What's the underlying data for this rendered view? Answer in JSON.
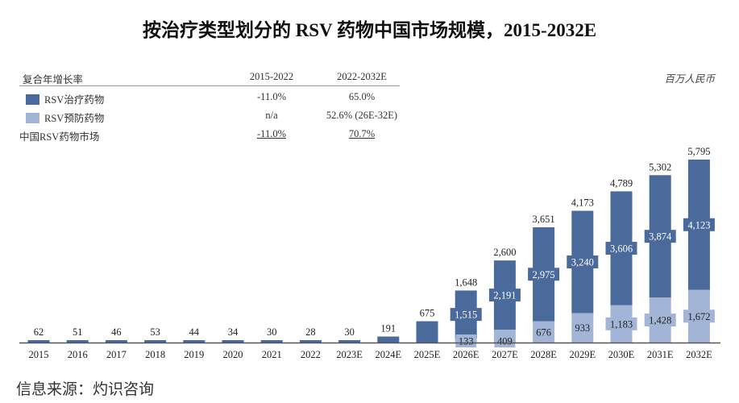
{
  "title": "按治疗类型划分的 RSV 药物中国市场规模，2015-2032E",
  "unit": "百万人民币",
  "source": "信息来源：灼识咨询",
  "cagr_table": {
    "header": [
      "复合年增长率",
      "2015-2022",
      "2022-2032E"
    ],
    "rows": [
      {
        "label": "RSV治疗药物",
        "p1": "-11.0%",
        "p2": "65.0%",
        "color": "#4a6a9c"
      },
      {
        "label": "RSV预防药物",
        "p1": "n/a",
        "p2": "52.6% (26E-32E)",
        "color": "#a3b5d6"
      },
      {
        "label": "中国RSV药物市场",
        "p1": "-11.0%",
        "p2": "70.7%"
      }
    ]
  },
  "chart_data": {
    "type": "bar",
    "stacked": true,
    "title": "按治疗类型划分的 RSV 药物中国市场规模，2015-2032E",
    "xlabel": "",
    "ylabel": "百万人民币",
    "ylim": [
      0,
      5795
    ],
    "grid": false,
    "categories": [
      "2015",
      "2016",
      "2017",
      "2018",
      "2019",
      "2020",
      "2021",
      "2022",
      "2023E",
      "2024E",
      "2025E",
      "2026E",
      "2027E",
      "2028E",
      "2029E",
      "2030E",
      "2031E",
      "2032E"
    ],
    "series": [
      {
        "name": "RSV预防药物",
        "color": "#a3b5d6",
        "values": [
          0,
          0,
          0,
          0,
          0,
          0,
          0,
          0,
          0,
          0,
          0,
          133,
          409,
          676,
          933,
          1183,
          1428,
          1672
        ],
        "labels": [
          "",
          "",
          "",
          "",
          "",
          "",
          "",
          "",
          "",
          "",
          "",
          "133",
          "409",
          "676",
          "933",
          "1,183",
          "1,428",
          "1,672"
        ]
      },
      {
        "name": "RSV治疗药物",
        "color": "#4a6a9c",
        "values": [
          62,
          51,
          46,
          53,
          44,
          34,
          30,
          28,
          30,
          191,
          675,
          1515,
          2191,
          2975,
          3240,
          3606,
          3874,
          4123
        ],
        "labels": [
          "",
          "",
          "",
          "",
          "",
          "",
          "",
          "",
          "",
          "",
          "",
          "1,515",
          "2,191",
          "2,975",
          "3,240",
          "3,606",
          "3,874",
          "4,123"
        ]
      }
    ],
    "totals": [
      62,
      51,
      46,
      53,
      44,
      34,
      30,
      28,
      30,
      191,
      675,
      1648,
      2600,
      3651,
      4173,
      4789,
      5302,
      5795
    ],
    "total_labels": [
      "62",
      "51",
      "46",
      "53",
      "44",
      "34",
      "30",
      "28",
      "30",
      "191",
      "675",
      "1,648",
      "2,600",
      "3,651",
      "4,173",
      "4,789",
      "5,302",
      "5,795"
    ]
  }
}
